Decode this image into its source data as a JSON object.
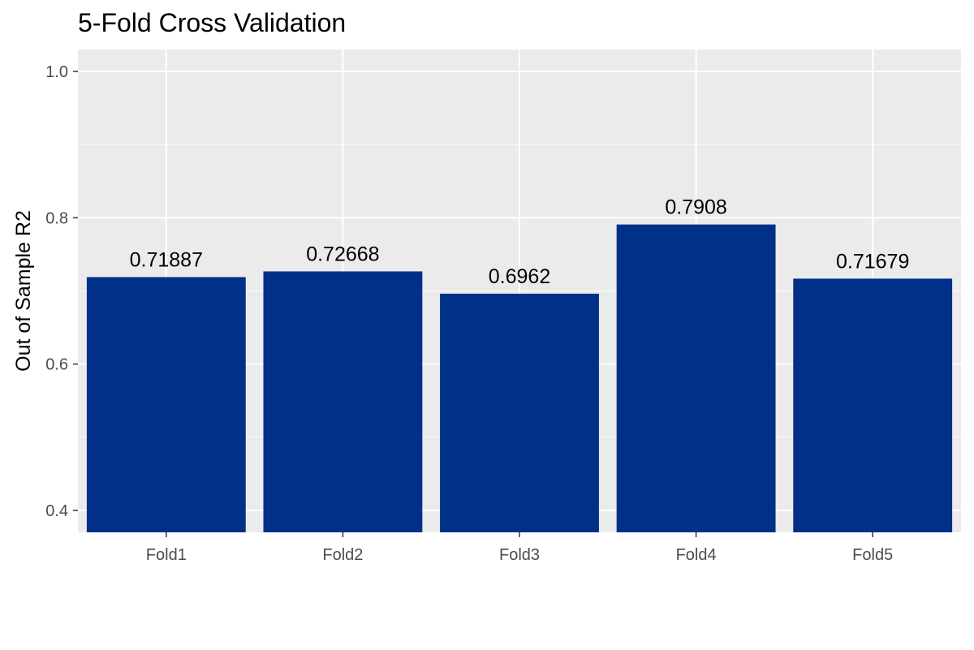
{
  "chart_data": {
    "type": "bar",
    "title": "5-Fold Cross Validation",
    "xlabel": "",
    "ylabel": "Out of Sample R2",
    "categories": [
      "Fold1",
      "Fold2",
      "Fold3",
      "Fold4",
      "Fold5"
    ],
    "values": [
      0.71887,
      0.72668,
      0.6962,
      0.7908,
      0.71679
    ],
    "value_labels": [
      "0.71887",
      "0.72668",
      "0.6962",
      "0.7908",
      "0.71679"
    ],
    "ylim": [
      0.37,
      1.03
    ],
    "yticks": [
      0.4,
      0.6,
      0.8,
      1.0
    ],
    "ytick_labels": [
      "0.4",
      "0.6",
      "0.8",
      "1.0"
    ],
    "grid": true,
    "legend": "none",
    "colors": {
      "bar": "#003087",
      "panel_background": "#ebebeb",
      "grid_major": "#ffffff",
      "tick_label": "#4d4d4d",
      "text": "#000000"
    }
  }
}
